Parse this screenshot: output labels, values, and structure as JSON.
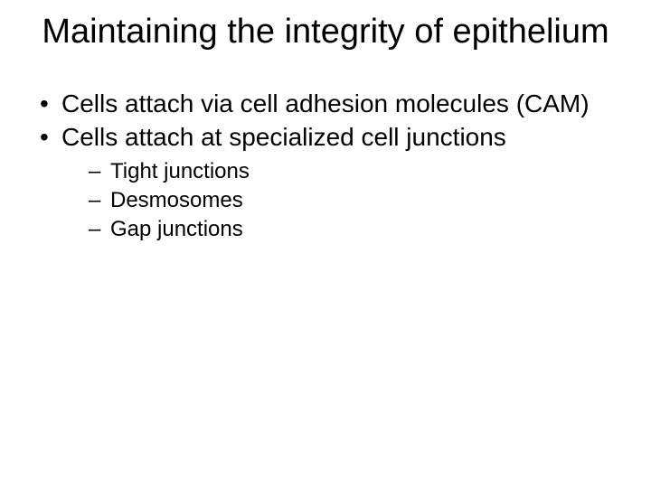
{
  "slide": {
    "background_color": "#ffffff",
    "text_color": "#000000",
    "font_family": "Arial",
    "title": {
      "text": "Maintaining the integrity of epithelium",
      "fontsize": 38,
      "align": "center",
      "weight": "normal"
    },
    "bullets": [
      {
        "text": "Cells attach via cell adhesion molecules (CAM)",
        "fontsize": 28,
        "marker": "•"
      },
      {
        "text": "Cells attach at specialized cell junctions",
        "fontsize": 28,
        "marker": "•"
      }
    ],
    "sub_bullets": [
      {
        "text": "Tight junctions",
        "fontsize": 24,
        "marker": "–"
      },
      {
        "text": "Desmosomes",
        "fontsize": 24,
        "marker": "–"
      },
      {
        "text": "Gap junctions",
        "fontsize": 24,
        "marker": "–"
      }
    ]
  }
}
